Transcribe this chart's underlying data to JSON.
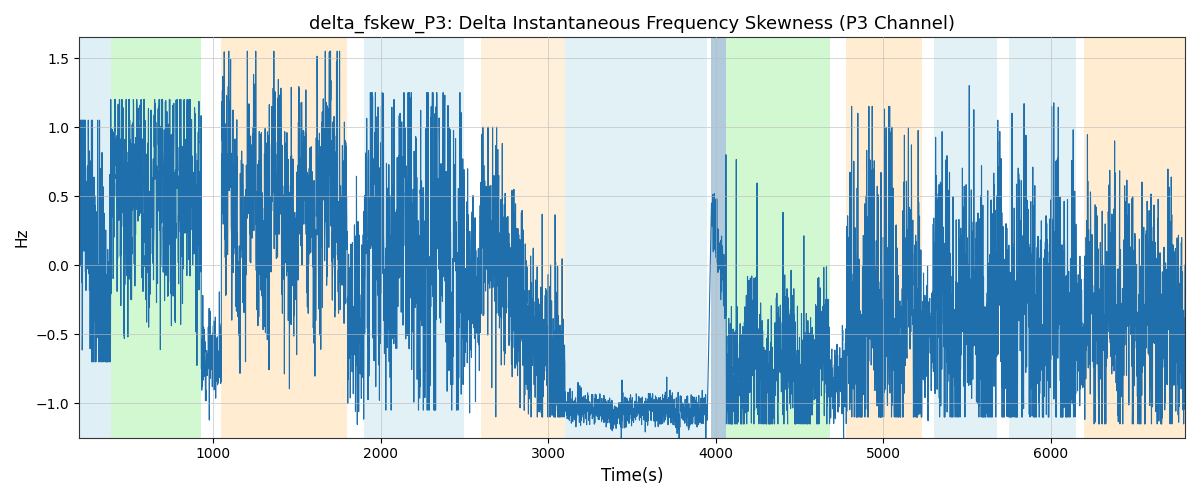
{
  "title": "delta_fskew_P3: Delta Instantaneous Frequency Skewness (P3 Channel)",
  "xlabel": "Time(s)",
  "ylabel": "Hz",
  "xlim": [
    200,
    6800
  ],
  "ylim": [
    -1.25,
    1.65
  ],
  "yticks": [
    -1.0,
    -0.5,
    0.0,
    0.5,
    1.0,
    1.5
  ],
  "xticks": [
    1000,
    2000,
    3000,
    4000,
    5000,
    6000
  ],
  "background_bands": [
    {
      "xmin": 200,
      "xmax": 390,
      "color": "#add8e6",
      "alpha": 0.4
    },
    {
      "xmin": 390,
      "xmax": 930,
      "color": "#90ee90",
      "alpha": 0.4
    },
    {
      "xmin": 1050,
      "xmax": 1800,
      "color": "#ffd59a",
      "alpha": 0.45
    },
    {
      "xmin": 1900,
      "xmax": 2500,
      "color": "#add8e6",
      "alpha": 0.35
    },
    {
      "xmin": 2600,
      "xmax": 3100,
      "color": "#ffd59a",
      "alpha": 0.35
    },
    {
      "xmin": 3100,
      "xmax": 3950,
      "color": "#add8e6",
      "alpha": 0.35
    },
    {
      "xmin": 3970,
      "xmax": 4060,
      "color": "#6699bb",
      "alpha": 0.5
    },
    {
      "xmin": 4060,
      "xmax": 4680,
      "color": "#90ee90",
      "alpha": 0.4
    },
    {
      "xmin": 4780,
      "xmax": 5230,
      "color": "#ffd59a",
      "alpha": 0.45
    },
    {
      "xmin": 5300,
      "xmax": 5680,
      "color": "#add8e6",
      "alpha": 0.35
    },
    {
      "xmin": 5750,
      "xmax": 6150,
      "color": "#add8e6",
      "alpha": 0.35
    },
    {
      "xmin": 6200,
      "xmax": 6800,
      "color": "#ffd59a",
      "alpha": 0.45
    }
  ],
  "line_color": "#1f6fad",
  "line_width": 0.8,
  "grid_color": "#bbbbbb",
  "grid_alpha": 0.6,
  "seed": 42
}
